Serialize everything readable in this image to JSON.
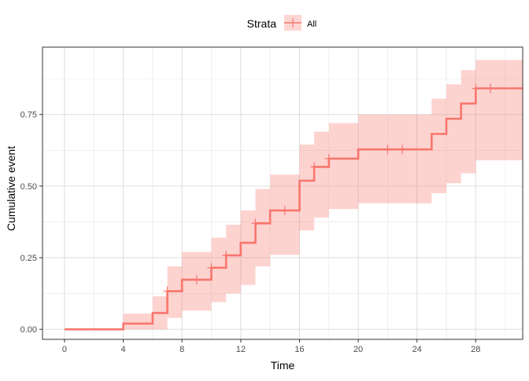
{
  "chart_data": {
    "type": "step",
    "xlabel": "Time",
    "ylabel": "Cumulative event",
    "xlim": [
      -1.5,
      31.2
    ],
    "ylim": [
      -0.035,
      0.985
    ],
    "xticks": [
      0,
      4,
      8,
      12,
      16,
      20,
      24,
      28
    ],
    "xtick_labels": [
      "0",
      "4",
      "8",
      "12",
      "16",
      "20",
      "24",
      "28"
    ],
    "yticks": [
      0,
      0.25,
      0.5,
      0.75
    ],
    "ytick_labels": [
      "0.00",
      "0.25",
      "0.50",
      "0.75"
    ],
    "grid": true,
    "legend": {
      "position": "top",
      "title": "Strata",
      "entries": [
        "All"
      ]
    },
    "colors": {
      "line": "#F8766D",
      "band": "#F8766D"
    },
    "series": [
      {
        "name": "All",
        "time": [
          0,
          4,
          6,
          7,
          8,
          10,
          11,
          12,
          13,
          14,
          16,
          17,
          18,
          20,
          25,
          26,
          27,
          28,
          31.2
        ],
        "value": [
          0,
          0.02,
          0.057,
          0.133,
          0.173,
          0.215,
          0.258,
          0.302,
          0.37,
          0.415,
          0.519,
          0.567,
          0.596,
          0.628,
          0.682,
          0.735,
          0.788,
          0.841,
          0.841
        ],
        "lower": [
          0,
          0,
          0,
          0.04,
          0.065,
          0.095,
          0.125,
          0.155,
          0.22,
          0.26,
          0.345,
          0.39,
          0.42,
          0.44,
          0.475,
          0.51,
          0.545,
          0.59,
          0.59
        ],
        "upper": [
          0,
          0.055,
          0.115,
          0.22,
          0.27,
          0.32,
          0.365,
          0.415,
          0.49,
          0.54,
          0.645,
          0.69,
          0.72,
          0.75,
          0.805,
          0.855,
          0.905,
          0.94,
          0.94
        ],
        "censor_times": [
          7,
          9,
          10,
          11,
          13,
          15,
          17,
          18,
          22,
          23,
          28,
          29
        ],
        "censor_values": [
          0.133,
          0.173,
          0.215,
          0.258,
          0.37,
          0.415,
          0.567,
          0.596,
          0.628,
          0.628,
          0.841,
          0.841
        ]
      }
    ]
  }
}
